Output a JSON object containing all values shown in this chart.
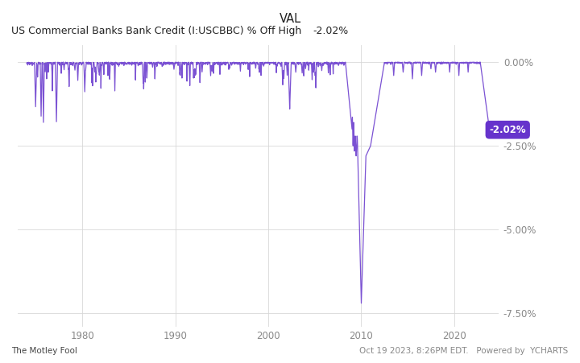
{
  "title_top": "VAL",
  "subtitle_label": "US Commercial Banks Bank Credit (I:USCBBC) % Off High",
  "subtitle_value": "-2.02%",
  "line_color": "#7B52D3",
  "background_color": "#ffffff",
  "grid_color": "#d8d8d8",
  "ylim": [
    -7.9,
    0.5
  ],
  "yticks": [
    0.0,
    -2.5,
    -5.0,
    -7.5
  ],
  "ytick_labels": [
    "0.00%",
    "-2.50%",
    "-5.00%",
    "-7.50%"
  ],
  "xlim_start": 1973.0,
  "xlim_end": 2024.8,
  "xticks": [
    1980,
    1990,
    2000,
    2010,
    2020
  ],
  "annotation_value": "-2.02%",
  "annotation_color": "#6633cc",
  "footer_left": "The Motley Fool",
  "footer_right": "Oct 19 2023, 8:26PM EDT.   Powered by  YCHARTS"
}
